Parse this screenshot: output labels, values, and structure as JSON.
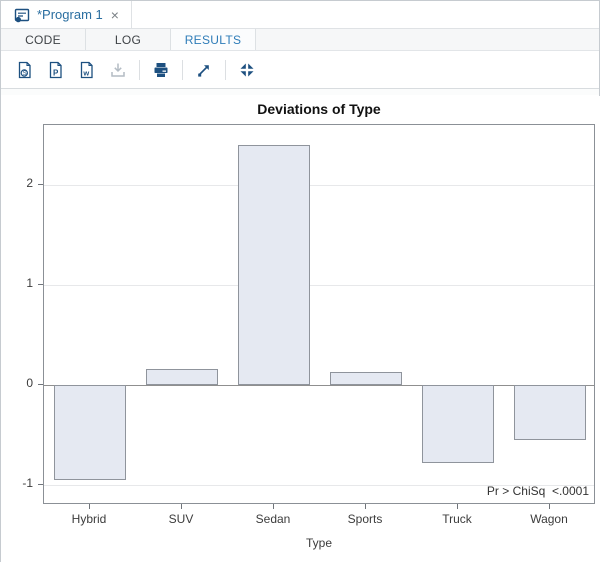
{
  "tab_bar": {
    "program_tab": {
      "label": "*Program 1",
      "close_label": "×"
    }
  },
  "result_tabs": {
    "items": [
      {
        "label": "CODE",
        "active": false
      },
      {
        "label": "LOG",
        "active": false
      },
      {
        "label": "RESULTS",
        "active": true
      }
    ]
  },
  "toolbar": {
    "icons": [
      "download-html-icon",
      "download-pdf-icon",
      "download-word-icon",
      "download-icon",
      "print-icon",
      "open-new-window-icon",
      "exit-maximize-icon"
    ]
  },
  "colors": {
    "accent_blue": "#2e7cb8",
    "icon_navy": "#1d5080",
    "disabled_gray": "#b4bcc4",
    "bar_fill": "#e5e9f2",
    "bar_border": "#8f949c"
  },
  "results": {
    "chart_data": {
      "type": "bar",
      "title": "Deviations of Type",
      "categories": [
        "Hybrid",
        "SUV",
        "Sedan",
        "Sports",
        "Truck",
        "Wagon"
      ],
      "values": [
        -0.95,
        0.16,
        2.4,
        0.13,
        -0.78,
        -0.55
      ],
      "xlabel": "Type",
      "ylabel": "",
      "ylim": [
        -1.2,
        2.6
      ],
      "yticks": [
        -1,
        0,
        1,
        2
      ],
      "grid": true,
      "legend": "none",
      "annotation": "Pr > ChiSq  <.0001",
      "bar_fill": "#e5e9f2",
      "bar_border": "#8f949c"
    }
  }
}
